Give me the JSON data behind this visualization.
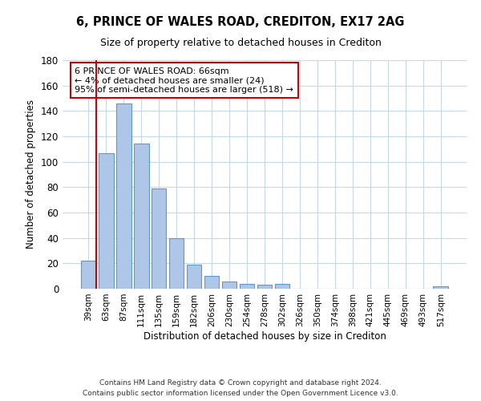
{
  "title": "6, PRINCE OF WALES ROAD, CREDITON, EX17 2AG",
  "subtitle": "Size of property relative to detached houses in Crediton",
  "xlabel": "Distribution of detached houses by size in Crediton",
  "ylabel": "Number of detached properties",
  "bar_labels": [
    "39sqm",
    "63sqm",
    "87sqm",
    "111sqm",
    "135sqm",
    "159sqm",
    "182sqm",
    "206sqm",
    "230sqm",
    "254sqm",
    "278sqm",
    "302sqm",
    "326sqm",
    "350sqm",
    "374sqm",
    "398sqm",
    "421sqm",
    "445sqm",
    "469sqm",
    "493sqm",
    "517sqm"
  ],
  "bar_values": [
    22,
    107,
    146,
    114,
    79,
    40,
    19,
    10,
    6,
    4,
    3,
    4,
    0,
    0,
    0,
    0,
    0,
    0,
    0,
    0,
    2
  ],
  "bar_color": "#aec6e8",
  "bar_edge_color": "#5b9bd5",
  "ylim": [
    0,
    180
  ],
  "yticks": [
    0,
    20,
    40,
    60,
    80,
    100,
    120,
    140,
    160,
    180
  ],
  "highlight_color": "#cc0000",
  "annotation_title": "6 PRINCE OF WALES ROAD: 66sqm",
  "annotation_line1": "← 4% of detached houses are smaller (24)",
  "annotation_line2": "95% of semi-detached houses are larger (518) →",
  "annotation_box_color": "#ffffff",
  "annotation_box_edge": "#cc0000",
  "footer_line1": "Contains HM Land Registry data © Crown copyright and database right 2024.",
  "footer_line2": "Contains public sector information licensed under the Open Government Licence v3.0.",
  "background_color": "#ffffff",
  "grid_color": "#c8d8ec"
}
